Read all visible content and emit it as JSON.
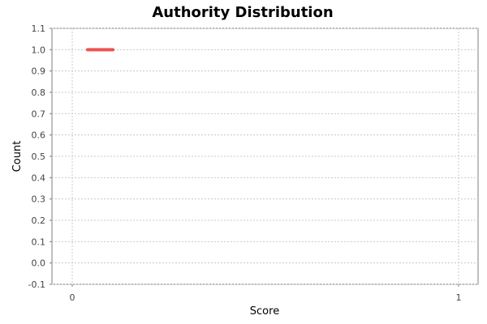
{
  "chart_data": {
    "type": "line",
    "title": "Authority Distribution",
    "xlabel": "Score",
    "ylabel": "Count",
    "xlim": [
      -0.05,
      1.05
    ],
    "ylim": [
      -0.1,
      1.1
    ],
    "x_ticks": [
      "0",
      "1"
    ],
    "x_tick_values": [
      0,
      1
    ],
    "y_ticks": [
      "-0.1",
      "0.0",
      "0.1",
      "0.2",
      "0.3",
      "0.4",
      "0.5",
      "0.6",
      "0.7",
      "0.8",
      "0.9",
      "1.0",
      "1.1"
    ],
    "y_tick_values": [
      -0.1,
      0.0,
      0.1,
      0.2,
      0.3,
      0.4,
      0.5,
      0.6,
      0.7,
      0.8,
      0.9,
      1.0,
      1.1
    ],
    "grid": true,
    "legend": "none",
    "series": [
      {
        "color": "#ef5050",
        "points": [
          {
            "x": 0.04,
            "y": 1.0
          },
          {
            "x": 0.105,
            "y": 1.0
          }
        ]
      }
    ]
  }
}
